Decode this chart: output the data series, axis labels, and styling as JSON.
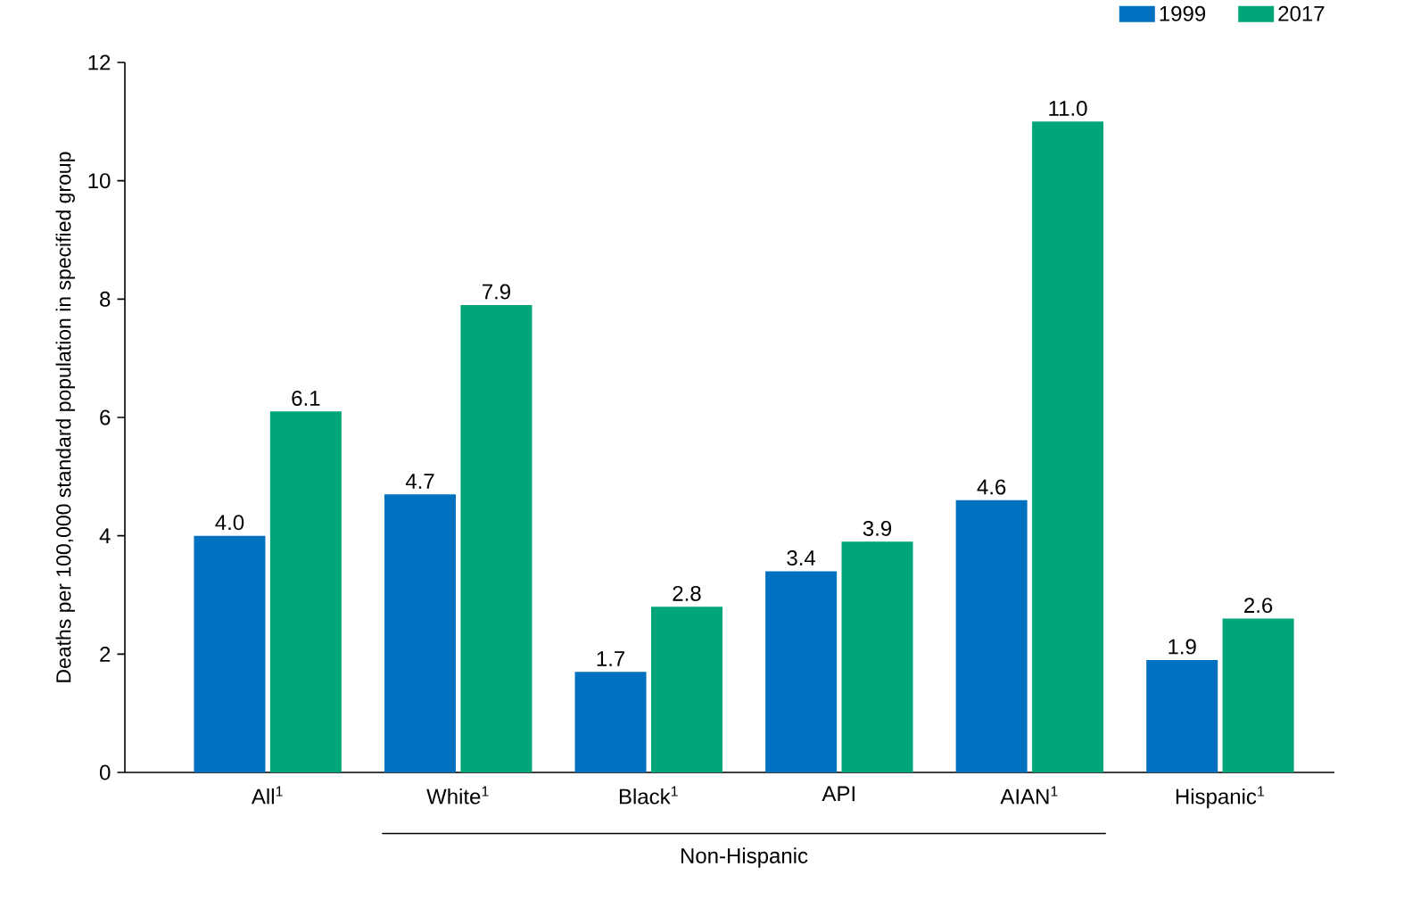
{
  "chart_data": {
    "type": "bar",
    "ylabel": "Deaths per 100,000 standard population in specified group",
    "categories": [
      "All$^{1}$",
      "White$^{1}$",
      "Black$^{1}$",
      "API",
      "AIAN$^{1}$",
      "Hispanic$^{1}$"
    ],
    "series": [
      {
        "name": "1999",
        "color": "#0070c0",
        "values": [
          4.0,
          4.7,
          1.7,
          3.4,
          4.6,
          1.9
        ],
        "value_labels": [
          "4.0",
          "4.7",
          "1.7",
          "3.4",
          "4.6",
          "1.9"
        ]
      },
      {
        "name": "2017",
        "color": "#00a67a",
        "values": [
          6.1,
          7.9,
          2.8,
          3.9,
          11.0,
          2.6
        ],
        "value_labels": [
          "6.1",
          "7.9",
          "2.8",
          "3.9",
          "11.0",
          "2.6"
        ]
      }
    ],
    "annotations": [
      "Non-Hispanic"
    ],
    "ylim": [
      0,
      12
    ],
    "yticks": [
      0,
      2,
      4,
      6,
      8,
      10,
      12
    ],
    "grid": false,
    "legend": "top right"
  }
}
